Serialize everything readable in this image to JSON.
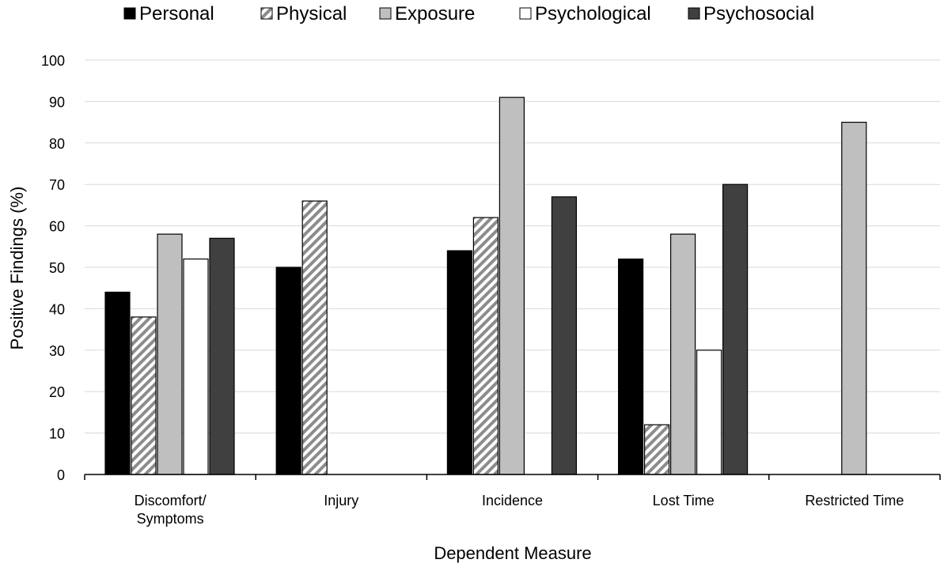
{
  "chart_data": {
    "type": "bar",
    "xlabel": "Dependent Measure",
    "ylabel": "Positive Findings (%)",
    "ylim": [
      0,
      100
    ],
    "yticks": [
      0,
      10,
      20,
      30,
      40,
      50,
      60,
      70,
      80,
      90,
      100
    ],
    "grid": true,
    "legend_position": "top",
    "categories": [
      [
        "Discomfort/",
        "Symptoms"
      ],
      [
        "Injury"
      ],
      [
        "Incidence"
      ],
      [
        "Lost Time"
      ],
      [
        "Restricted Time"
      ]
    ],
    "series": [
      {
        "name": "Personal",
        "values": [
          44,
          50,
          54,
          52,
          null
        ],
        "style": "solid",
        "color": "#000000"
      },
      {
        "name": "Physical",
        "values": [
          38,
          66,
          62,
          12,
          null
        ],
        "style": "hatch",
        "color": "#8c8c8c"
      },
      {
        "name": "Exposure",
        "values": [
          58,
          null,
          91,
          58,
          85
        ],
        "style": "solid",
        "color": "#bfbfbf"
      },
      {
        "name": "Psychological",
        "values": [
          52,
          null,
          null,
          30,
          null
        ],
        "style": "solid",
        "color": "#ffffff"
      },
      {
        "name": "Psychosocial",
        "values": [
          57,
          null,
          67,
          70,
          null
        ],
        "style": "solid",
        "color": "#404040"
      }
    ]
  }
}
